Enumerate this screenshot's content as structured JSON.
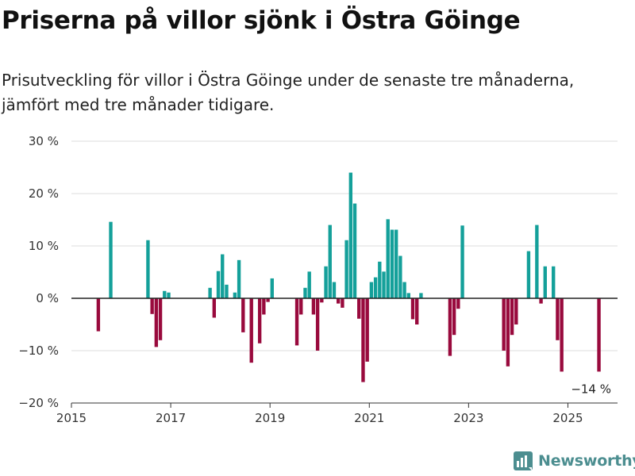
{
  "header": {
    "title": "Priserna på villor sjönk i Östra Göinge",
    "subtitle": "Prisutveckling för villor i Östra Göinge under de senaste tre månaderna, jämfört med tre månader tidigare."
  },
  "brand": {
    "name": "Newsworthy",
    "icon": "newsworthy-logo-icon",
    "color": "#4c8e90"
  },
  "colors": {
    "positive": "#14a09a",
    "negative": "#990a3d",
    "grid": "#dddddd",
    "axis": "#333333"
  },
  "chart_data": {
    "type": "bar",
    "title": "Priserna på villor sjönk i Östra Göinge",
    "subtitle": "Prisutveckling för villor i Östra Göinge under de senaste tre månaderna, jämfört med tre månader tidigare.",
    "xlabel": "",
    "ylabel": "",
    "ylim": [
      -20,
      30
    ],
    "xlim": [
      "2015-01",
      "2026-01"
    ],
    "y_ticks": [
      -20,
      -10,
      0,
      10,
      20,
      30
    ],
    "y_tick_labels": [
      "−20 %",
      "−10 %",
      "0 %",
      "10 %",
      "20 %",
      "30 %"
    ],
    "x_ticks": [
      "2015-01",
      "2017-01",
      "2019-01",
      "2021-01",
      "2023-01",
      "2025-01"
    ],
    "x_tick_labels": [
      "2015",
      "2017",
      "2019",
      "2021",
      "2023",
      "2025"
    ],
    "grid": "horizontal",
    "annotation": "−14 %",
    "series": [
      {
        "x": [
          "2015-07",
          "2015-10",
          "2016-07",
          "2016-08",
          "2016-09",
          "2016-10",
          "2016-11",
          "2016-12",
          "2017-10",
          "2017-11",
          "2017-12",
          "2018-01",
          "2018-02",
          "2018-04",
          "2018-05",
          "2018-06",
          "2018-08",
          "2018-10",
          "2018-11",
          "2018-12",
          "2019-01",
          "2019-07",
          "2019-08",
          "2019-09",
          "2019-10",
          "2019-11",
          "2019-12",
          "2020-01",
          "2020-02",
          "2020-03",
          "2020-04",
          "2020-05",
          "2020-06",
          "2020-07",
          "2020-08",
          "2020-09",
          "2020-10",
          "2020-11",
          "2020-12",
          "2021-01",
          "2021-02",
          "2021-03",
          "2021-04",
          "2021-05",
          "2021-06",
          "2021-07",
          "2021-08",
          "2021-09",
          "2021-10",
          "2021-11",
          "2021-12",
          "2022-01",
          "2022-08",
          "2022-09",
          "2022-10",
          "2022-11",
          "2023-09",
          "2023-10",
          "2023-11",
          "2023-12",
          "2024-03",
          "2024-05",
          "2024-06",
          "2024-07",
          "2024-09",
          "2024-10",
          "2024-11",
          "2025-08"
        ],
        "values": [
          -6.3,
          14.6,
          11.1,
          -3.0,
          -9.3,
          -8.0,
          1.4,
          1.1,
          2.0,
          -3.7,
          5.2,
          8.4,
          2.6,
          1.1,
          7.3,
          -6.5,
          -12.3,
          -8.6,
          -3.1,
          -0.7,
          3.8,
          -9.0,
          -3.1,
          2.0,
          5.1,
          -3.1,
          -10.0,
          -0.8,
          6.1,
          14.0,
          3.1,
          -1.0,
          -1.8,
          11.1,
          24.0,
          18.1,
          -3.9,
          -16.0,
          -12.1,
          3.1,
          4.0,
          7.0,
          5.1,
          15.1,
          13.1,
          13.1,
          8.1,
          3.1,
          1.0,
          -4.0,
          -5.0,
          1.0,
          -11.0,
          -7.0,
          -2.0,
          13.9,
          -10.0,
          -13.0,
          -7.0,
          -5.0,
          9.0,
          14.0,
          -1.0,
          6.1,
          6.1,
          -8.0,
          -14.0,
          -14.0
        ]
      }
    ]
  }
}
